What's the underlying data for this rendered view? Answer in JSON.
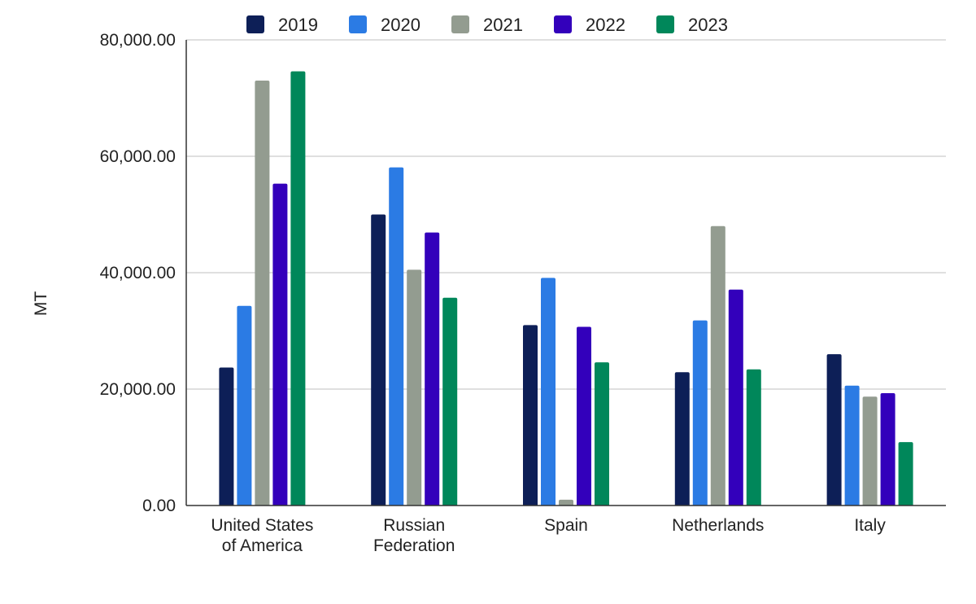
{
  "chart_data": {
    "type": "bar",
    "categories": [
      [
        "United States",
        "of America"
      ],
      [
        "Russian",
        "Federation"
      ],
      [
        "Spain"
      ],
      [
        "Netherlands"
      ],
      [
        "Italy"
      ]
    ],
    "series": [
      {
        "name": "2019",
        "color": "#0d1f57",
        "values": [
          23700,
          50000,
          31000,
          22900,
          26000
        ]
      },
      {
        "name": "2020",
        "color": "#2b7be4",
        "values": [
          34300,
          58100,
          39100,
          31800,
          20600
        ]
      },
      {
        "name": "2021",
        "color": "#939c90",
        "values": [
          73000,
          40500,
          1000,
          48000,
          18700
        ]
      },
      {
        "name": "2022",
        "color": "#3300bb",
        "values": [
          55300,
          46900,
          30700,
          37100,
          19300
        ]
      },
      {
        "name": "2023",
        "color": "#00875a",
        "values": [
          74600,
          35700,
          24600,
          23400,
          10900
        ]
      }
    ],
    "ylabel": "MT",
    "ylim": [
      0,
      80000
    ],
    "yticks": [
      {
        "value": 0,
        "label": "0.00"
      },
      {
        "value": 20000,
        "label": "20,000.00"
      },
      {
        "value": 40000,
        "label": "40,000.00"
      },
      {
        "value": 60000,
        "label": "60,000.00"
      },
      {
        "value": 80000,
        "label": "80,000.00"
      }
    ],
    "grid": true,
    "legend_position": "top"
  }
}
